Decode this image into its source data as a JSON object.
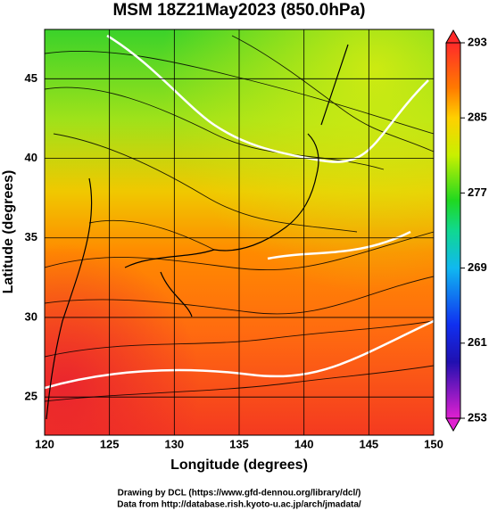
{
  "title": "MSM 18Z21May2023 (850.0hPa)",
  "x_axis": {
    "label": "Longitude (degrees)",
    "lim": [
      120,
      150
    ],
    "ticks": [
      120,
      125,
      130,
      135,
      140,
      145,
      150
    ]
  },
  "y_axis": {
    "label": "Latitude  (degrees)",
    "lim": [
      22.6,
      48.1
    ],
    "ticks": [
      25,
      30,
      35,
      40,
      45
    ]
  },
  "colorbar": {
    "lim": [
      253,
      293
    ],
    "ticks": [
      253,
      261,
      269,
      277,
      285,
      293
    ]
  },
  "credits": [
    "Drawing by DCL (https://www.gfd-dennou.org/library/dcl/)",
    "Data from http://database.rish.kyoto-u.ac.jp/arch/jmadata/"
  ]
}
